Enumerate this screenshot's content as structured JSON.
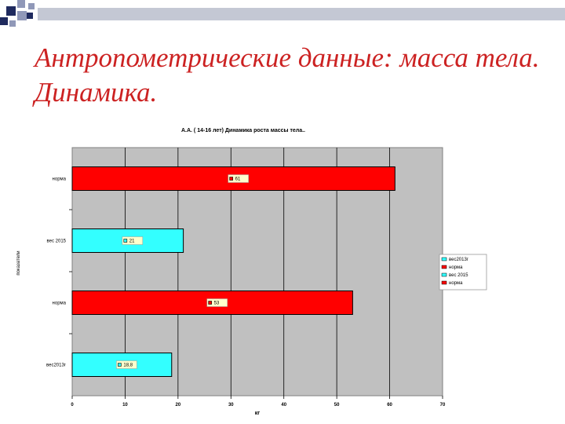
{
  "slide": {
    "title": "Антропометрические данные: масса тела. Динамика."
  },
  "colors": {
    "accent_red": "#cc2222",
    "navy_square": "#1f2a5e",
    "square_gray": "#9098b8",
    "plot_background": "#c0c0c0",
    "bar_red": "#ff0000",
    "bar_cyan": "#33ffff",
    "data_label_bg": "#ffffcc"
  },
  "chart_data": {
    "type": "bar",
    "orientation": "horizontal",
    "title": "А.А. ( 14-16 лет) Динамика роста массы тела..",
    "xlabel": "кг",
    "ylabel": "показатели",
    "xlim": [
      0,
      70
    ],
    "xticks": [
      "0",
      "10",
      "20",
      "30",
      "40",
      "50",
      "60",
      "70"
    ],
    "grid": true,
    "legend_position": "right",
    "categories": [
      "норма",
      "вес 2015",
      "норма",
      "вес2013г"
    ],
    "values": [
      61,
      21,
      53,
      18.8
    ],
    "value_labels": [
      "61",
      "21",
      "53",
      "18,8"
    ],
    "bar_colors": [
      "#ff0000",
      "#33ffff",
      "#ff0000",
      "#33ffff"
    ],
    "legend": [
      {
        "name": "вес2013г",
        "color": "#33ffff"
      },
      {
        "name": "норма",
        "color": "#ff0000"
      },
      {
        "name": "вес 2015",
        "color": "#33ffff"
      },
      {
        "name": "норма",
        "color": "#ff0000"
      }
    ]
  }
}
